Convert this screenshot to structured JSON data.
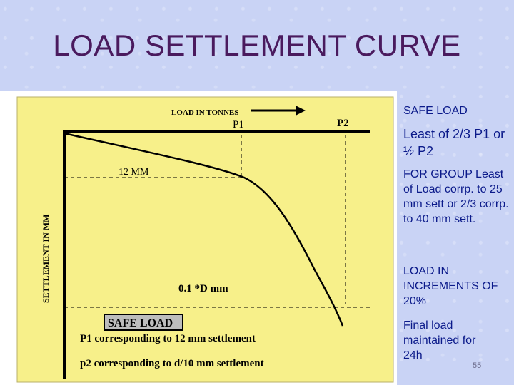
{
  "slide": {
    "title": "LOAD SETTLEMENT CURVE",
    "page_number": "55"
  },
  "diagram": {
    "x_axis_label": "LOAD IN TONNES",
    "y_axis_label": "SETTLEMENT IN MM",
    "p1_label": "P1",
    "p2_label": "P2",
    "settlement_12mm_label": "12 MM",
    "settlement_d_label": "0.1 *D mm",
    "safe_load_box": "SAFE LOAD",
    "note_p1": "P1 corresponding to 12 mm settlement",
    "note_p2": "p2 corresponding to d/10 mm settlement",
    "background_color": "#f7f08a"
  },
  "sidebar": {
    "safe_load_heading": "SAFE LOAD",
    "least_of": "Least of  2/3 P1 or ½ P2",
    "for_group": "FOR GROUP Least of  Load corrp. to 25 mm sett or 2/3 corrp. to 40 mm sett.",
    "increments": "LOAD IN INCREMENTS OF 20%",
    "final_load": "Final load maintained for 24h"
  }
}
